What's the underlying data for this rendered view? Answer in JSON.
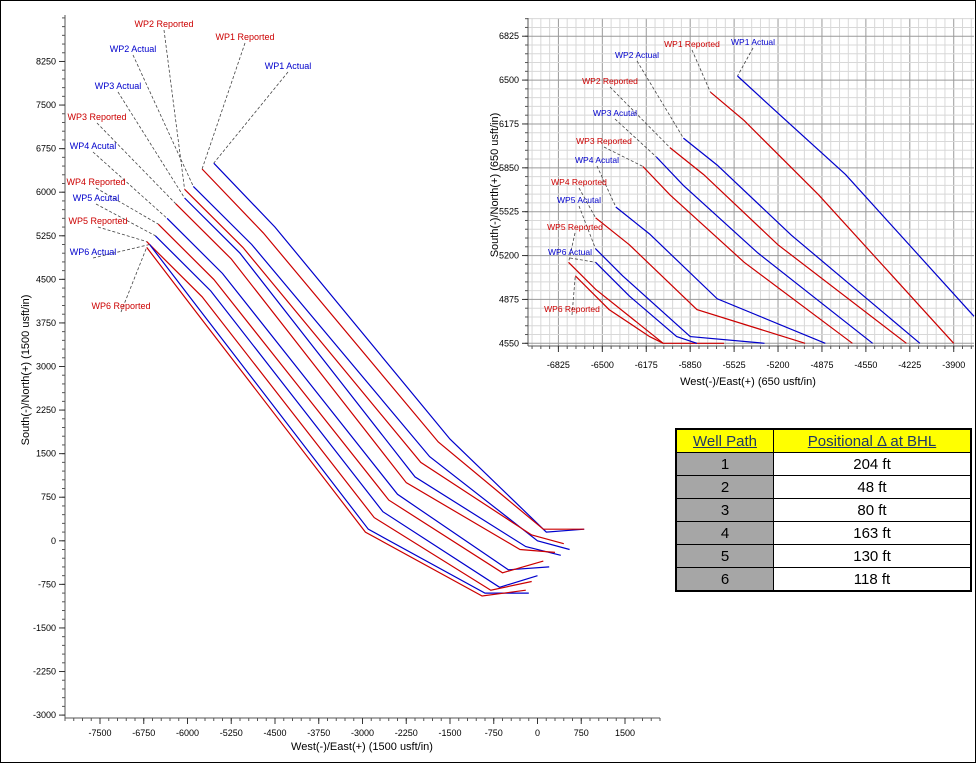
{
  "chart_data": [
    {
      "type": "line",
      "xlabel": "West(-)/East(+) (1500 usft/in)",
      "ylabel": "South(-)/North(+) (1500 usft/in)",
      "xlim": [
        -8100,
        2100
      ],
      "ylim": [
        -3050,
        9050
      ],
      "xticks": [
        -7500,
        -6750,
        -6000,
        -5250,
        -4500,
        -3750,
        -3000,
        -2250,
        -1500,
        -750,
        0,
        750,
        1500
      ],
      "yticks": [
        8250,
        7500,
        6750,
        6000,
        5250,
        4500,
        3750,
        3000,
        2250,
        1500,
        750,
        0,
        -750,
        -1500,
        -2250,
        -3000
      ],
      "series": [
        {
          "name": "WP1 Actual",
          "color": "#0000cc",
          "x": [
            -5550,
            -4500,
            -1500,
            150,
            800
          ],
          "y": [
            6500,
            5400,
            1750,
            150,
            200
          ]
        },
        {
          "name": "WP1 Reported",
          "color": "#cc0000",
          "x": [
            -5750,
            -4700,
            -1700,
            100,
            800
          ],
          "y": [
            6400,
            5300,
            1700,
            200,
            200
          ]
        },
        {
          "name": "WP2 Actual",
          "color": "#0000cc",
          "x": [
            -5900,
            -4900,
            -1850,
            0,
            550
          ],
          "y": [
            6100,
            5100,
            1450,
            0,
            -150
          ]
        },
        {
          "name": "WP2 Reported",
          "color": "#cc0000",
          "x": [
            -6050,
            -5050,
            -2000,
            -100,
            450
          ],
          "y": [
            6050,
            5050,
            1350,
            100,
            -50
          ]
        },
        {
          "name": "WP3 Actual",
          "color": "#0000cc",
          "x": [
            -6050,
            -5100,
            -2100,
            -200,
            400
          ],
          "y": [
            5900,
            4950,
            1100,
            -100,
            -250
          ]
        },
        {
          "name": "WP3 Reported",
          "color": "#cc0000",
          "x": [
            -6200,
            -5250,
            -2250,
            -300,
            300
          ],
          "y": [
            5800,
            4850,
            1000,
            -150,
            -200
          ]
        },
        {
          "name": "WP4 Actual",
          "color": "#0000cc",
          "x": [
            -6350,
            -5400,
            -2400,
            -500,
            200
          ],
          "y": [
            5550,
            4600,
            800,
            -500,
            -450
          ]
        },
        {
          "name": "WP4 Reported",
          "color": "#cc0000",
          "x": [
            -6500,
            -5550,
            -2550,
            -600,
            100
          ],
          "y": [
            5450,
            4500,
            700,
            -550,
            -350
          ]
        },
        {
          "name": "WP5 Actual",
          "color": "#0000cc",
          "x": [
            -6550,
            -5600,
            -2650,
            -650,
            0
          ],
          "y": [
            5250,
            4300,
            500,
            -800,
            -600
          ]
        },
        {
          "name": "WP5 Reported",
          "color": "#cc0000",
          "x": [
            -6700,
            -5750,
            -2800,
            -800,
            -100
          ],
          "y": [
            5150,
            4200,
            400,
            -850,
            -700
          ]
        },
        {
          "name": "WP6 Actual",
          "color": "#0000cc",
          "x": [
            -6650,
            -5850,
            -2900,
            -900,
            -150
          ],
          "y": [
            5100,
            4050,
            200,
            -900,
            -900
          ]
        },
        {
          "name": "WP6 Reported",
          "color": "#cc0000",
          "x": [
            -6700,
            -5900,
            -2950,
            -950,
            -200
          ],
          "y": [
            5050,
            4000,
            150,
            -950,
            -850
          ]
        }
      ],
      "annotations": [
        {
          "text": "WP2 Reported",
          "color": "#cc0000"
        },
        {
          "text": "WP1 Reported",
          "color": "#cc0000"
        },
        {
          "text": "WP2 Actual",
          "color": "#0000cc"
        },
        {
          "text": "WP1 Actual",
          "color": "#0000cc"
        },
        {
          "text": "WP3 Actual",
          "color": "#0000cc"
        },
        {
          "text": "WP3 Reported",
          "color": "#cc0000"
        },
        {
          "text": "WP4 Acutal",
          "color": "#0000cc"
        },
        {
          "text": "WP4 Reported",
          "color": "#cc0000"
        },
        {
          "text": "WP5 Acutal",
          "color": "#0000cc"
        },
        {
          "text": "WP5 Reported",
          "color": "#cc0000"
        },
        {
          "text": "WP6 Actual",
          "color": "#0000cc"
        },
        {
          "text": "WP6 Reported",
          "color": "#cc0000"
        }
      ],
      "grid": false
    },
    {
      "type": "line",
      "xlabel": "West(-)/East(+) (650 usft/in)",
      "ylabel": "South(-)/North(+) (650 usft/in)",
      "xlim": [
        -7050,
        -3750
      ],
      "ylim": [
        4530,
        6960
      ],
      "xticks": [
        -6825,
        -6500,
        -6175,
        -5850,
        -5525,
        -5200,
        -4875,
        -4550,
        -4225,
        -3900
      ],
      "yticks": [
        6825,
        6500,
        6175,
        5850,
        5525,
        5200,
        4875,
        4550
      ],
      "series": [
        {
          "name": "WP1 Actual",
          "color": "#0000cc",
          "x": [
            -5500,
            -5250,
            -4700,
            -3750
          ],
          "y": [
            6530,
            6300,
            5800,
            4750
          ]
        },
        {
          "name": "WP1 Reported",
          "color": "#cc0000",
          "x": [
            -5700,
            -5450,
            -4900,
            -3900
          ],
          "y": [
            6410,
            6200,
            5650,
            4550
          ]
        },
        {
          "name": "WP2 Actual",
          "color": "#0000cc",
          "x": [
            -5900,
            -5650,
            -5100,
            -4150
          ],
          "y": [
            6070,
            5870,
            5350,
            4550
          ]
        },
        {
          "name": "WP2 Reported",
          "color": "#cc0000",
          "x": [
            -6000,
            -5750,
            -5200,
            -4250
          ],
          "y": [
            6000,
            5800,
            5280,
            4550
          ]
        },
        {
          "name": "WP3 Actual",
          "color": "#0000cc",
          "x": [
            -6100,
            -5900,
            -5350,
            -4500
          ],
          "y": [
            5930,
            5720,
            5220,
            4550
          ]
        },
        {
          "name": "WP3 Reported",
          "color": "#cc0000",
          "x": [
            -6200,
            -6000,
            -5450,
            -4650
          ],
          "y": [
            5860,
            5650,
            5150,
            4550
          ]
        },
        {
          "name": "WP4 Actual",
          "color": "#0000cc",
          "x": [
            -6400,
            -6150,
            -5650,
            -4850
          ],
          "y": [
            5560,
            5360,
            4880,
            4550
          ]
        },
        {
          "name": "WP4 Reported",
          "color": "#cc0000",
          "x": [
            -6550,
            -6300,
            -5800,
            -5000
          ],
          "y": [
            5480,
            5280,
            4800,
            4550
          ]
        },
        {
          "name": "WP5 Actual",
          "color": "#0000cc",
          "x": [
            -6550,
            -6350,
            -5850,
            -5300
          ],
          "y": [
            5250,
            5050,
            4600,
            4550
          ]
        },
        {
          "name": "WP5 Reported",
          "color": "#cc0000",
          "x": [
            -6750,
            -6550,
            -6050,
            -5600
          ],
          "y": [
            5150,
            4950,
            4550,
            4550
          ]
        },
        {
          "name": "WP6 Actual",
          "color": "#0000cc",
          "x": [
            -6550,
            -6300,
            -5950,
            -5800
          ],
          "y": [
            5150,
            4900,
            4600,
            4550
          ]
        },
        {
          "name": "WP6 Reported",
          "color": "#cc0000",
          "x": [
            -6700,
            -6450,
            -6150,
            -6050
          ],
          "y": [
            5050,
            4800,
            4600,
            4550
          ]
        }
      ],
      "annotations": [
        {
          "text": "WP1  Reported",
          "color": "#cc0000"
        },
        {
          "text": "WP1 Actual",
          "color": "#0000cc"
        },
        {
          "text": "WP2 Actual",
          "color": "#0000cc"
        },
        {
          "text": "WP2 Reported",
          "color": "#cc0000"
        },
        {
          "text": "WP3 Acutal",
          "color": "#0000cc"
        },
        {
          "text": "WP3 Reported",
          "color": "#cc0000"
        },
        {
          "text": "WP4 Acutal",
          "color": "#0000cc"
        },
        {
          "text": "WP4  Reported",
          "color": "#cc0000"
        },
        {
          "text": "WP5 Acutal",
          "color": "#0000cc"
        },
        {
          "text": "WP5 Reported",
          "color": "#cc0000"
        },
        {
          "text": "WP6 Actual",
          "color": "#0000cc"
        },
        {
          "text": "WP6 Reported",
          "color": "#cc0000"
        }
      ],
      "grid": true
    },
    {
      "type": "table",
      "columns": [
        "Well Path",
        "Positional Δ at BHL"
      ],
      "rows": [
        [
          "1",
          "204 ft"
        ],
        [
          "2",
          "48 ft"
        ],
        [
          "3",
          "80 ft"
        ],
        [
          "4",
          "163 ft"
        ],
        [
          "5",
          "130 ft"
        ],
        [
          "6",
          "118 ft"
        ]
      ]
    }
  ]
}
